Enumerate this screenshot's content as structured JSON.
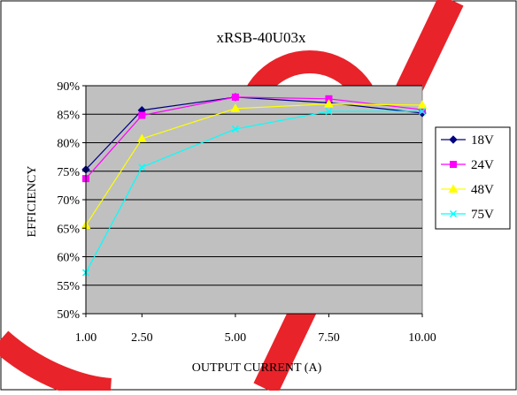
{
  "watermark_color": "#e8232a",
  "chart_data": {
    "type": "line",
    "title": "xRSB-40U03x",
    "xlabel": "OUTPUT CURRENT (A)",
    "ylabel": "EFFICIENCY",
    "categories": [
      "1.00",
      "2.50",
      "5.00",
      "7.50",
      "10.00"
    ],
    "x": [
      1,
      2.5,
      5,
      7.5,
      10
    ],
    "ylim": [
      0.5,
      0.9
    ],
    "yticks": [
      "50%",
      "55%",
      "60%",
      "65%",
      "70%",
      "75%",
      "80%",
      "85%",
      "90%"
    ],
    "grid": true,
    "plot_background": "#c0c0c0",
    "legend_position": "right",
    "series": [
      {
        "name": "18V",
        "values": [
          0.753,
          0.857,
          0.88,
          0.87,
          0.852
        ],
        "color": "#000080",
        "marker": "diamond"
      },
      {
        "name": "24V",
        "values": [
          0.737,
          0.848,
          0.88,
          0.877,
          0.858
        ],
        "color": "#ff00ff",
        "marker": "square"
      },
      {
        "name": "48V",
        "values": [
          0.655,
          0.807,
          0.86,
          0.868,
          0.866
        ],
        "color": "#ffff00",
        "marker": "triangle"
      },
      {
        "name": "75V",
        "values": [
          0.572,
          0.757,
          0.824,
          0.855,
          0.855
        ],
        "color": "#00ffff",
        "marker": "x"
      }
    ]
  }
}
